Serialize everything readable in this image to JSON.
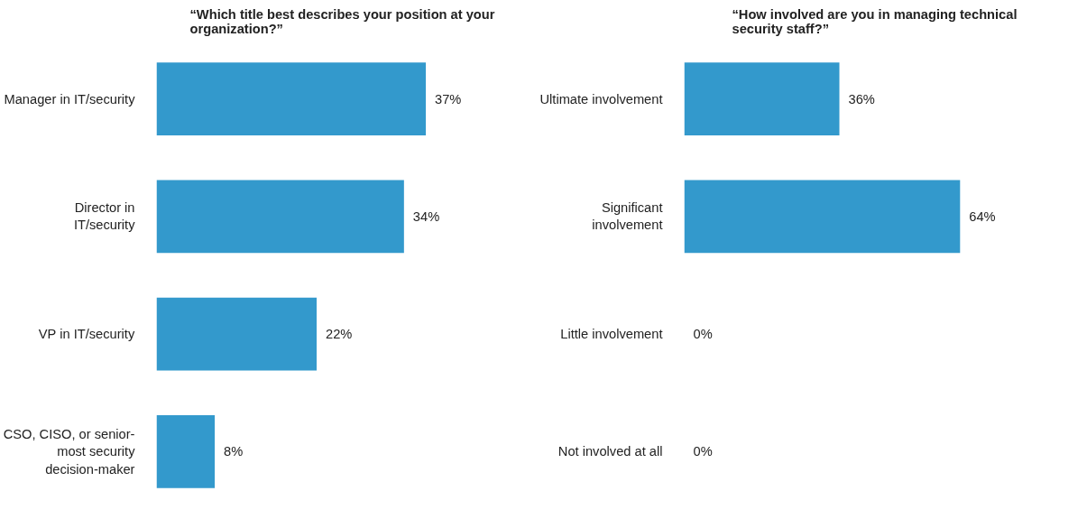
{
  "chart_data": [
    {
      "type": "bar",
      "orientation": "horizontal",
      "title": "“Which title best describes your position at your organization?”",
      "categories": [
        "Manager in IT/security",
        "Director in IT/security",
        "VP in IT/security",
        "CSO, CISO, or senior-most security decision-maker"
      ],
      "values": [
        37,
        34,
        22,
        8
      ],
      "value_labels": [
        "37%",
        "34%",
        "22%",
        "8%"
      ],
      "color": "#3399cc"
    },
    {
      "type": "bar",
      "orientation": "horizontal",
      "title": "“How involved are you in managing technical security staff?”",
      "categories": [
        "Ultimate involvement",
        "Significant involvement",
        "Little involvement",
        "Not involved at all"
      ],
      "values": [
        36,
        64,
        0,
        0
      ],
      "value_labels": [
        "36%",
        "64%",
        "0%",
        "0%"
      ],
      "color": "#3399cc"
    }
  ]
}
